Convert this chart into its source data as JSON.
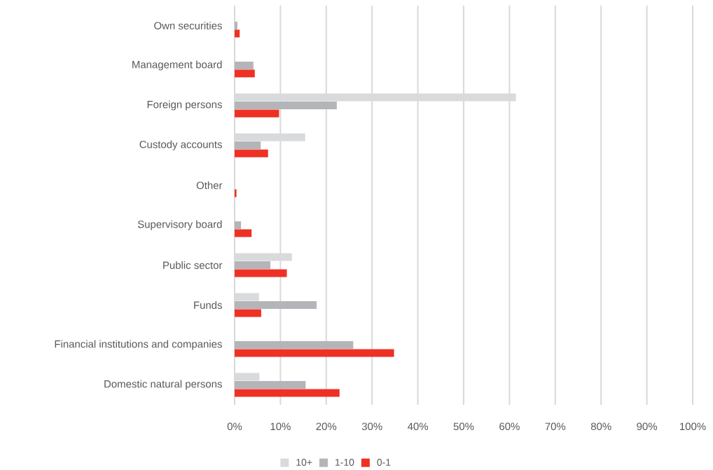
{
  "chart_data": {
    "type": "bar",
    "orientation": "horizontal",
    "categories": [
      "Own securities",
      "Management board",
      "Foreign persons",
      "Custody accounts",
      "Other",
      "Supervisory board",
      "Public sector",
      "Funds",
      "Financial institutions and companies",
      "Domestic natural persons"
    ],
    "series": [
      {
        "name": "10+",
        "color": "#d9dadc",
        "values": [
          null,
          null,
          61.4,
          15.4,
          null,
          null,
          12.5,
          5.3,
          null,
          5.4
        ]
      },
      {
        "name": "1-10",
        "color": "#b4b5b8",
        "values": [
          0.6,
          4.1,
          22.3,
          5.7,
          null,
          1.4,
          7.8,
          17.9,
          25.9,
          15.5
        ]
      },
      {
        "name": "0-1",
        "color": "#ee3124",
        "values": [
          1.1,
          4.4,
          9.7,
          7.3,
          0.4,
          3.7,
          11.4,
          5.8,
          34.8,
          22.9
        ]
      }
    ],
    "xlim": [
      0,
      100
    ],
    "xticks": [
      {
        "value": 0,
        "label": "0%"
      },
      {
        "value": 10,
        "label": "10%"
      },
      {
        "value": 20,
        "label": "20%"
      },
      {
        "value": 30,
        "label": "30%"
      },
      {
        "value": 40,
        "label": "40%"
      },
      {
        "value": 50,
        "label": "50%"
      },
      {
        "value": 60,
        "label": "60%"
      },
      {
        "value": 70,
        "label": "70%"
      },
      {
        "value": 80,
        "label": "80%"
      },
      {
        "value": 90,
        "label": "90%"
      },
      {
        "value": 100,
        "label": "100%"
      }
    ],
    "grid": "x",
    "legend": "bottom"
  }
}
